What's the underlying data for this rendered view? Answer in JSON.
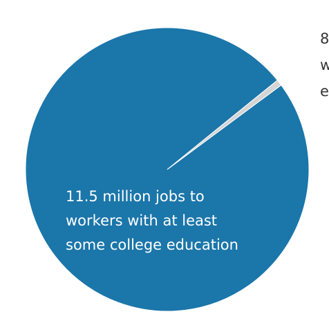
{
  "chart_data": {
    "type": "pie",
    "values": [
      11.5,
      0.08
    ],
    "colors": [
      "#1b76aa",
      "#d4d4d4"
    ],
    "text_colors": [
      "#ffffff",
      "#333333"
    ],
    "labels": [
      [
        "11.5 million jobs to",
        "workers with at least",
        "some college education"
      ],
      [
        "8",
        "w",
        "e"
      ]
    ]
  }
}
